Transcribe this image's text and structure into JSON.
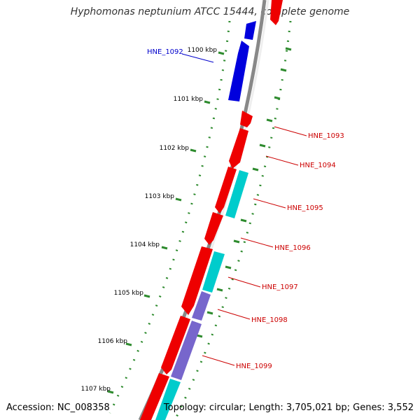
{
  "title": "Hyphomonas neptunium ATCC 15444, complete genome",
  "footer": {
    "accession": "Accession: NC_008358",
    "topology": "Topology: circular; Length: 3,705,021 bp; Genes: 3,552"
  },
  "colors": {
    "forward_cds": "#ee0000",
    "reverse_cds": "#0000dd",
    "rna_feature": "#00cccc",
    "other_feature": "#7766cc",
    "backbone": "#888888",
    "ruler": "#2e8b2e",
    "label_forward": "#cc0000",
    "label_reverse": "#0000cc"
  },
  "ticks": [
    "1100 kbp",
    "1101 kbp",
    "1102 kbp",
    "1103 kbp",
    "1104 kbp",
    "1105 kbp",
    "1106 kbp",
    "1107 kbp"
  ],
  "gene_labels": [
    "HNE_1092",
    "HNE_1093",
    "HNE_1094",
    "HNE_1095",
    "HNE_1096",
    "HNE_1097",
    "HNE_1098",
    "HNE_1099"
  ]
}
